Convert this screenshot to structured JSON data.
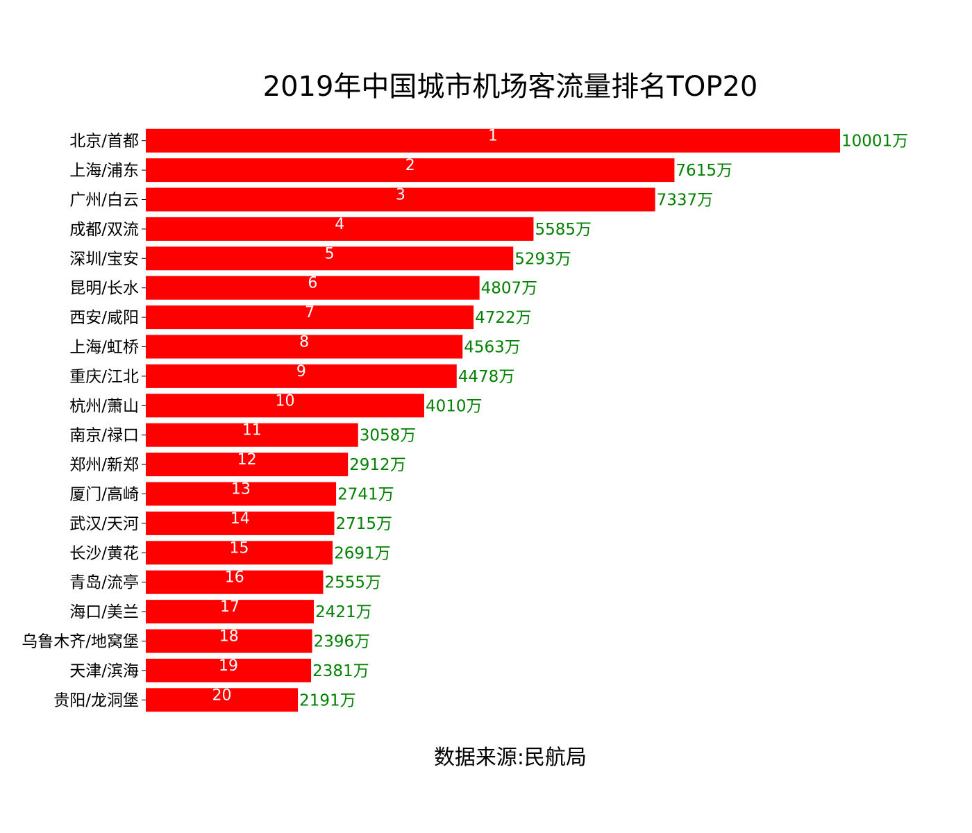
{
  "chart_data": {
    "type": "bar",
    "orientation": "horizontal",
    "title": "2019年中国城市机场客流量排名TOP20",
    "source": "数据来源:民航局",
    "value_suffix": "万",
    "bar_color": "#ff0000",
    "value_label_color": "#008000",
    "rank_label_color": "#ffffff",
    "grid": false,
    "xlim": [
      0,
      10001
    ],
    "categories": [
      "北京/首都",
      "上海/浦东",
      "广州/白云",
      "成都/双流",
      "深圳/宝安",
      "昆明/长水",
      "西安/咸阳",
      "上海/虹桥",
      "重庆/江北",
      "杭州/萧山",
      "南京/禄口",
      "郑州/新郑",
      "厦门/高崎",
      "武汉/天河",
      "长沙/黄花",
      "青岛/流亭",
      "海口/美兰",
      "乌鲁木齐/地窝堡",
      "天津/滨海",
      "贵阳/龙洞堡"
    ],
    "ranks": [
      1,
      2,
      3,
      4,
      5,
      6,
      7,
      8,
      9,
      10,
      11,
      12,
      13,
      14,
      15,
      16,
      17,
      18,
      19,
      20
    ],
    "values": [
      10001,
      7615,
      7337,
      5585,
      5293,
      4807,
      4722,
      4563,
      4478,
      4010,
      3058,
      2912,
      2741,
      2715,
      2691,
      2555,
      2421,
      2396,
      2381,
      2191
    ]
  }
}
